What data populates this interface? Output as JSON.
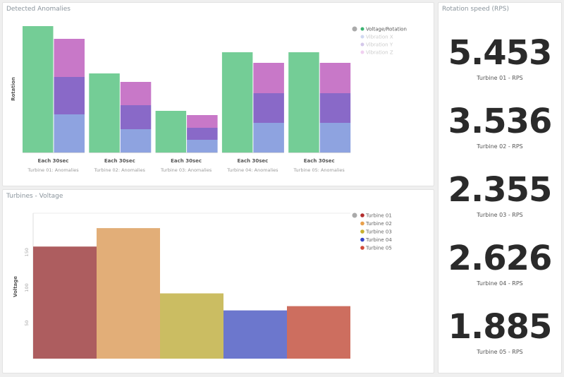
{
  "panels": {
    "anomalies_title": "Detected Anomalies",
    "voltage_title": "Turbines - Voltage",
    "rps_title": "Rotation speed (RPS)"
  },
  "chart_data": [
    {
      "type": "bar",
      "title": "Detected Anomalies",
      "ylabel": "Rotation",
      "categories": [
        "Each 30sec",
        "Each 30sec",
        "Each 30sec",
        "Each 30sec",
        "Each 30sec"
      ],
      "subcategories": [
        "Turbine 01: Anomalies",
        "Turbine 02: Anomalies",
        "Turbine 03: Anomalies",
        "Turbine 04: Anomalies",
        "Turbine 05: Anomalies"
      ],
      "legend_position": "top-right",
      "grid": false,
      "series": [
        {
          "name": "Voltage/Rotation",
          "color": "#74cd96",
          "stack": "a",
          "values": [
            179,
            112,
            59,
            142,
            142
          ]
        },
        {
          "name": "Vibration X",
          "color": "#8ea3e0",
          "stack": "b",
          "values": [
            54,
            33,
            18,
            42,
            42
          ]
        },
        {
          "name": "Vibration Y",
          "color": "#8969c8",
          "stack": "b",
          "values": [
            53,
            34,
            17,
            42,
            42
          ]
        },
        {
          "name": "Vibration Z",
          "color": "#c878c8",
          "stack": "b",
          "values": [
            54,
            33,
            18,
            43,
            43
          ]
        }
      ],
      "legend_colors": [
        "#3cb371",
        "#d0d8f0",
        "#d4c8ea",
        "#f0d0f0"
      ]
    },
    {
      "type": "bar",
      "title": "Turbines - Voltage",
      "ylabel": "Voltage",
      "ylim": [
        0,
        205
      ],
      "yticks": [
        50,
        100,
        150
      ],
      "legend_position": "top-right",
      "categories": [
        "Turbine 01",
        "Turbine 02",
        "Turbine 03",
        "Turbine 04",
        "Turbine 05"
      ],
      "values": [
        158,
        184,
        92,
        68,
        74
      ],
      "colors": [
        "#ad5d5f",
        "#e2ae78",
        "#cbbd62",
        "#6c77cd",
        "#cd6e5f"
      ],
      "legend_colors": [
        "#b32d2d",
        "#e8a04c",
        "#c8b02e",
        "#3545c8",
        "#d04a3a"
      ]
    }
  ],
  "metrics": [
    {
      "value": "5.453",
      "label": "Turbine 01 - RPS"
    },
    {
      "value": "3.536",
      "label": "Turbine 02 - RPS"
    },
    {
      "value": "2.355",
      "label": "Turbine 03 - RPS"
    },
    {
      "value": "2.626",
      "label": "Turbine 04 - RPS"
    },
    {
      "value": "1.885",
      "label": "Turbine 05 - RPS"
    }
  ]
}
